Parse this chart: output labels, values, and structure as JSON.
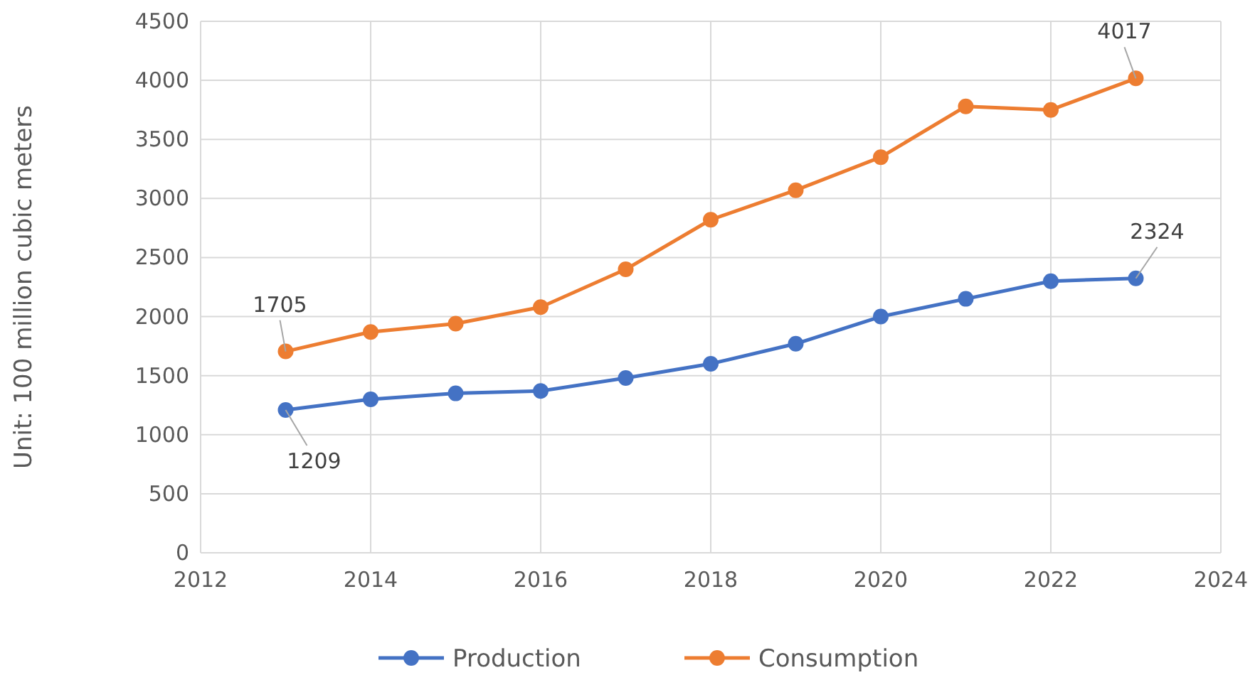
{
  "chart_data": {
    "type": "line",
    "ylabel": "Unit: 100 million cubic meters",
    "x": [
      2013,
      2014,
      2015,
      2016,
      2017,
      2018,
      2019,
      2020,
      2021,
      2022,
      2023
    ],
    "series": [
      {
        "name": "Production",
        "color": "#4472c4",
        "values": [
          1209,
          1300,
          1350,
          1370,
          1480,
          1600,
          1770,
          2000,
          2150,
          2300,
          2324
        ],
        "value_labels": [
          "1209",
          null,
          null,
          null,
          null,
          null,
          null,
          null,
          null,
          null,
          "2324"
        ]
      },
      {
        "name": "Consumption",
        "color": "#ed7d31",
        "values": [
          1705,
          1870,
          1940,
          2080,
          2400,
          2820,
          3070,
          3350,
          3780,
          3750,
          4017
        ],
        "value_labels": [
          "1705",
          null,
          null,
          null,
          null,
          null,
          null,
          null,
          null,
          null,
          "4017"
        ]
      }
    ],
    "xlim": [
      2012,
      2024
    ],
    "xticks": [
      2012,
      2014,
      2016,
      2018,
      2020,
      2022,
      2024
    ],
    "ylim": [
      0,
      4500
    ],
    "yticks": [
      0,
      500,
      1000,
      1500,
      2000,
      2500,
      3000,
      3500,
      4000,
      4500
    ],
    "grid": true,
    "legend": "bottom",
    "marker": "circle",
    "line_style": "solid"
  }
}
